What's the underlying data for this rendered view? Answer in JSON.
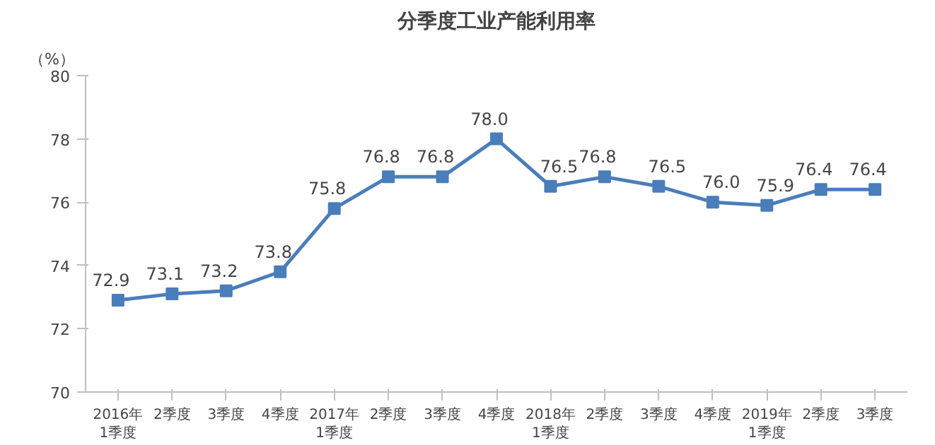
{
  "chart_data": {
    "type": "line",
    "title": "分季度工业产能利用率",
    "ylabel": "（%）",
    "categories": [
      "2016年\n1季度",
      "2季度",
      "3季度",
      "4季度",
      "2017年\n1季度",
      "2季度",
      "3季度",
      "4季度",
      "2018年\n1季度",
      "2季度",
      "3季度",
      "4季度",
      "2019年\n1季度",
      "2季度",
      "3季度"
    ],
    "series": [
      {
        "color": "#4a7ebb",
        "values": [
          72.9,
          73.1,
          73.2,
          73.8,
          75.8,
          76.8,
          76.8,
          78.0,
          76.5,
          76.8,
          76.5,
          76.0,
          75.9,
          76.4,
          76.4
        ],
        "value_labels": [
          "72.9",
          "73.1",
          "73.2",
          "73.8",
          "75.8",
          "76.8",
          "76.8",
          "78.0",
          "76.5",
          "76.8",
          "76.5",
          "76.0",
          "75.9",
          "76.4",
          "76.4"
        ]
      }
    ],
    "ylim": [
      70,
      80
    ],
    "yticks": [
      70,
      72,
      74,
      76,
      78,
      80
    ],
    "grid": false,
    "marker": "square",
    "line_style": "solid"
  }
}
